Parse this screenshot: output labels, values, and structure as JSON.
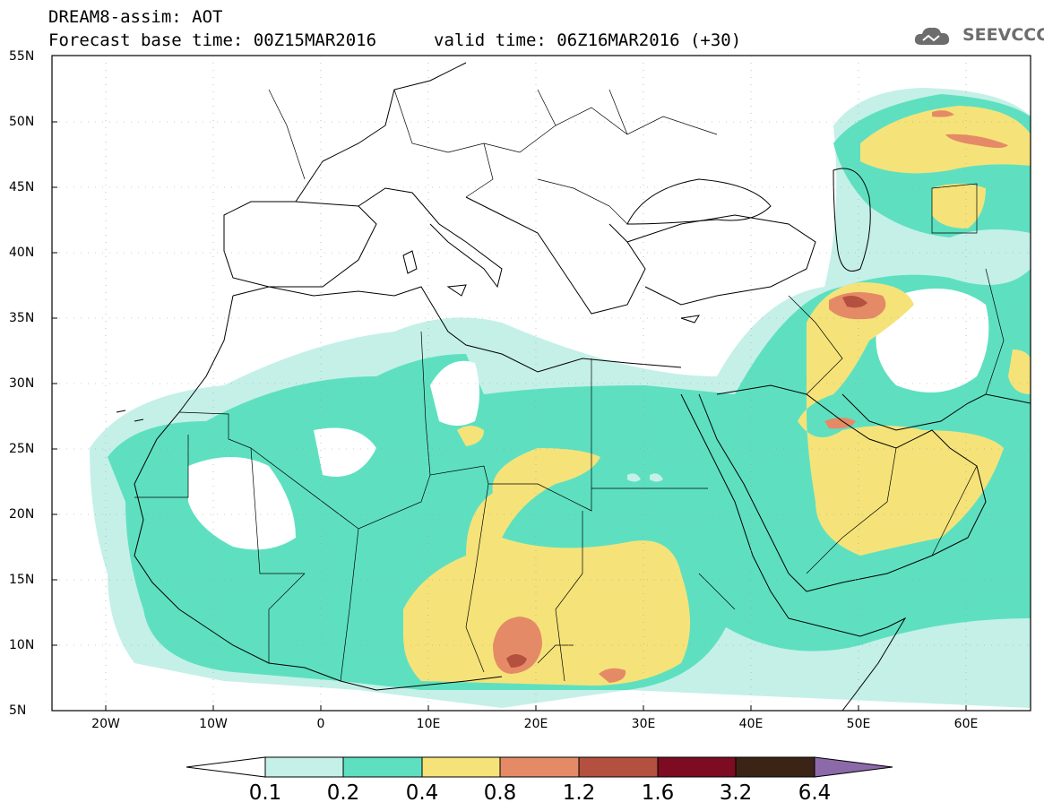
{
  "header": {
    "line1": "DREAM8-assim: AOT",
    "line2": "Forecast base time: 00Z15MAR2016",
    "valid": "valid time: 06Z16MAR2016 (+30)"
  },
  "logo": {
    "text": "SEEVCCC",
    "icon": "cloud-logo-icon"
  },
  "map": {
    "lon_range": [
      -25,
      65
    ],
    "lat_range": [
      5,
      55
    ],
    "lat_labels": [
      "55N",
      "50N",
      "45N",
      "40N",
      "35N",
      "30N",
      "25N",
      "20N",
      "15N",
      "10N",
      "5N"
    ],
    "lon_labels": [
      "20W",
      "10W",
      "0",
      "10E",
      "20E",
      "30E",
      "40E",
      "50E",
      "60E"
    ]
  },
  "colorbar": {
    "labels": [
      "0.1",
      "0.2",
      "0.4",
      "0.8",
      "1.2",
      "1.6",
      "3.2",
      "6.4"
    ],
    "colors": [
      "#ffffff",
      "#c4f0e8",
      "#5ee0c0",
      "#f5e37a",
      "#e58a66",
      "#b4503f",
      "#7d0c22",
      "#3b2416",
      "#8c6aaa"
    ]
  }
}
